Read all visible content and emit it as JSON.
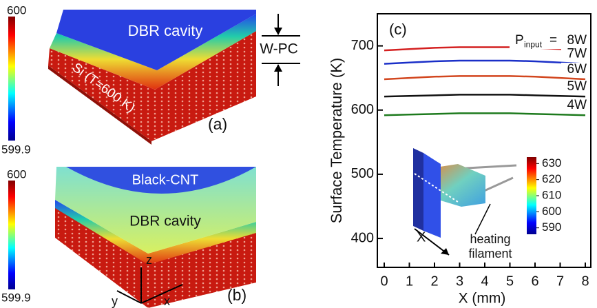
{
  "panels": {
    "a": {
      "label": "(a)",
      "cbar_max": "600",
      "cbar_min": "599.9",
      "cavity": "DBR cavity",
      "substrate": "Si (T=600 K)",
      "wpc": "W-PC"
    },
    "b": {
      "label": "(b)",
      "cbar_max": "600",
      "cbar_min": "599.9",
      "top": "Black-CNT",
      "cavity": "DBR cavity",
      "axis_z": "z",
      "axis_y": "y",
      "axis_x": "x"
    }
  },
  "chart_data": {
    "type": "line",
    "panel_label": "(c)",
    "x_label": "X (mm)",
    "y_label": "Surface Temperature (K)",
    "x": [
      0,
      1,
      2,
      3,
      4,
      5,
      6,
      7,
      8
    ],
    "xlim": [
      0,
      8
    ],
    "xticks": [
      0,
      1,
      2,
      3,
      4,
      5,
      6,
      7,
      8
    ],
    "ylim": [
      355,
      750
    ],
    "yticks": [
      400,
      500,
      600,
      700
    ],
    "legend_prefix": {
      "main": "P",
      "sub": "input",
      "op": "="
    },
    "series": [
      {
        "name": "8W",
        "color": "#d42020",
        "values": [
          693,
          695,
          697,
          698,
          698,
          698,
          697,
          695,
          693
        ]
      },
      {
        "name": "7W",
        "color": "#1a2fc8",
        "values": [
          672,
          674,
          676,
          677,
          677,
          677,
          676,
          674,
          672
        ]
      },
      {
        "name": "6W",
        "color": "#d2461e",
        "values": [
          648,
          650,
          652,
          653,
          653,
          653,
          652,
          650,
          648
        ]
      },
      {
        "name": "5W",
        "color": "#111111",
        "values": [
          621,
          622,
          623,
          624,
          624,
          624,
          623,
          622,
          621
        ]
      },
      {
        "name": "4W",
        "color": "#1d7a1d",
        "values": [
          592,
          593,
          594,
          595,
          595,
          595,
          594,
          593,
          592
        ]
      }
    ],
    "inset": {
      "cbar_ticks": [
        630,
        620,
        610,
        600,
        590
      ],
      "cbar_lim": [
        586,
        634
      ],
      "axis": "X",
      "note_line1": "heating",
      "note_line2": "filament"
    }
  }
}
